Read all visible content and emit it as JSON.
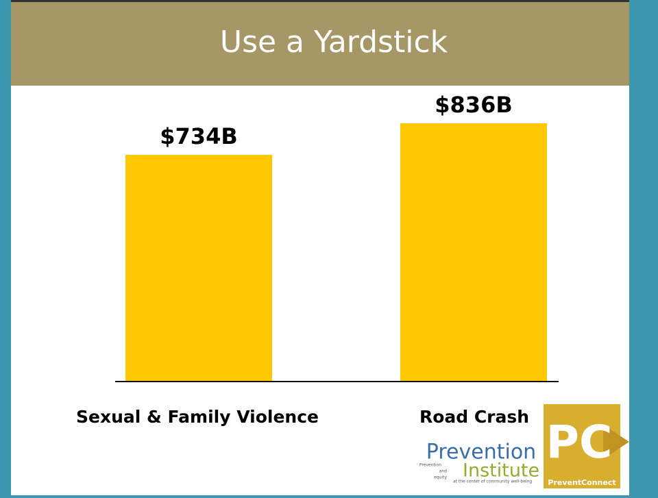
{
  "chart_data": {
    "type": "bar",
    "title": "Use a Yardstick",
    "categories": [
      "Sexual & Family Violence",
      "Road Crash"
    ],
    "values": [
      734,
      836
    ],
    "value_labels": [
      "$734B",
      "$836B"
    ],
    "color": "#ffc800"
  },
  "logos": {
    "institute_name_1": "Prevention",
    "institute_name_2": "Institute",
    "institute_tag_1": "Prevention",
    "institute_tag_2": "and",
    "institute_tag_3": "equity",
    "institute_tagline": "at the center of community well-being",
    "connect_mark": "PC",
    "connect_name": "PreventConnect"
  }
}
